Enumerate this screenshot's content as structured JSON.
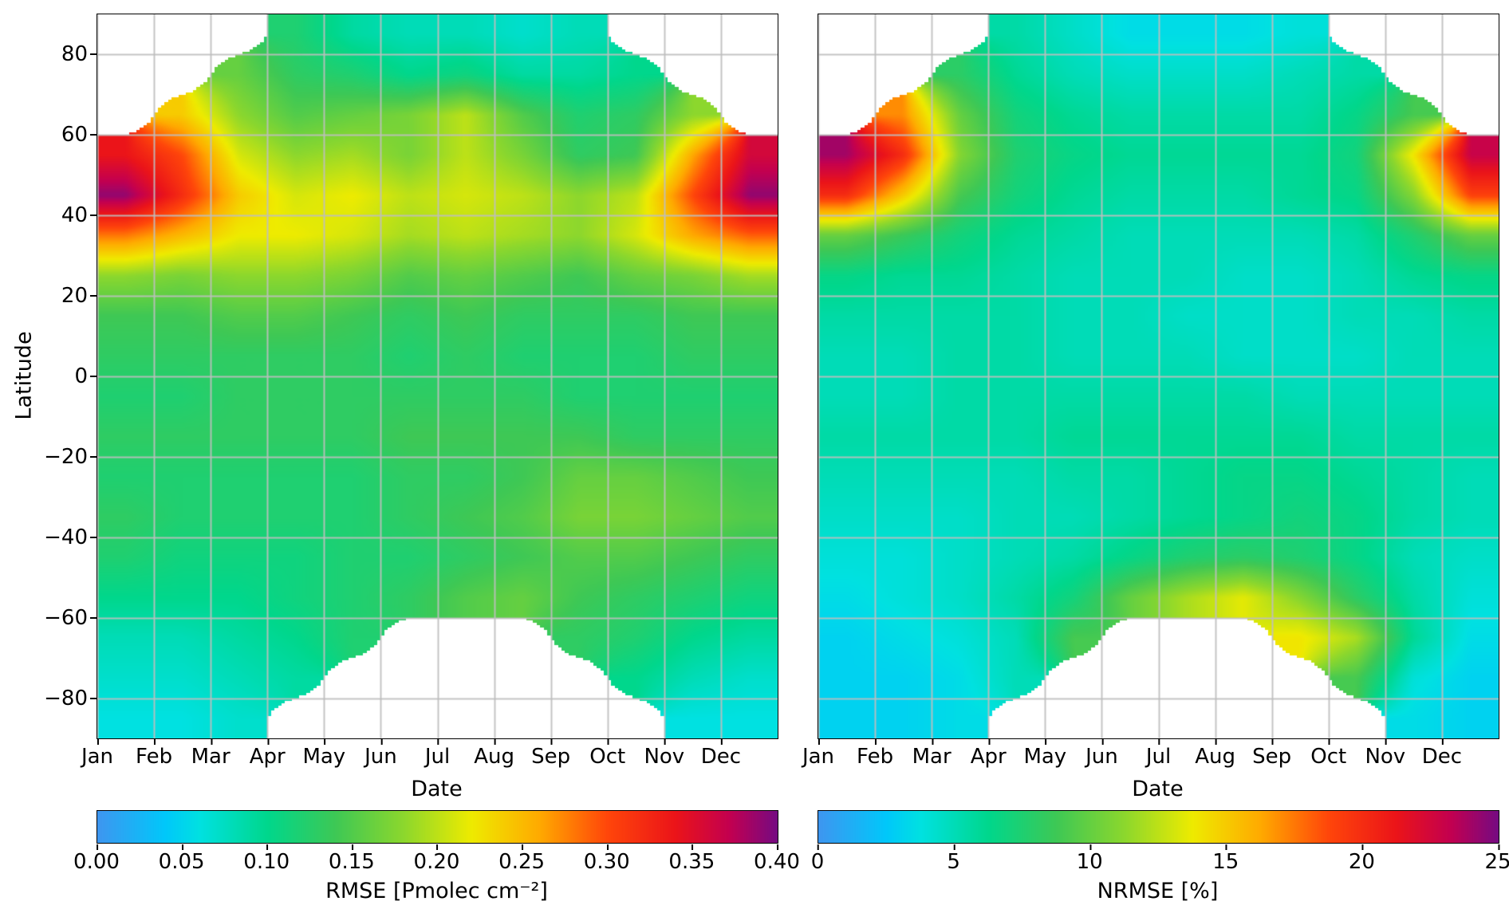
{
  "figure": {
    "ylabel": "Latitude",
    "xlabel": "Date",
    "months": [
      "Jan",
      "Feb",
      "Mar",
      "Apr",
      "May",
      "Jun",
      "Jul",
      "Aug",
      "Sep",
      "Oct",
      "Nov",
      "Dec"
    ],
    "lat_ticks": {
      "values": [
        80,
        60,
        40,
        20,
        0,
        -20,
        -40,
        -60,
        -80
      ],
      "labels": [
        "80",
        "60",
        "40",
        "20",
        "0",
        "−20",
        "−40",
        "−60",
        "−80"
      ]
    },
    "grid_color": "#bebebe",
    "background_color": "#ffffff"
  },
  "colormap": [
    [
      0.0,
      [
        62,
        150,
        240
      ]
    ],
    [
      0.1,
      [
        0,
        200,
        250
      ]
    ],
    [
      0.15,
      [
        0,
        225,
        225
      ]
    ],
    [
      0.25,
      [
        0,
        215,
        140
      ]
    ],
    [
      0.35,
      [
        62,
        200,
        85
      ]
    ],
    [
      0.45,
      [
        140,
        215,
        45
      ]
    ],
    [
      0.55,
      [
        238,
        235,
        0
      ]
    ],
    [
      0.65,
      [
        255,
        170,
        0
      ]
    ],
    [
      0.75,
      [
        255,
        70,
        10
      ]
    ],
    [
      0.85,
      [
        235,
        20,
        25
      ]
    ],
    [
      0.93,
      [
        195,
        0,
        80
      ]
    ],
    [
      1.0,
      [
        118,
        10,
        130
      ]
    ]
  ],
  "chart_data": [
    {
      "type": "heatmap",
      "panel": "left",
      "xlabel": "Date",
      "ylabel": "Latitude",
      "colorbar_label": "RMSE [Pmolec cm⁻²]",
      "x_categories": [
        "Jan",
        "Feb",
        "Mar",
        "Apr",
        "May",
        "Jun",
        "Jul",
        "Aug",
        "Sep",
        "Oct",
        "Nov",
        "Dec"
      ],
      "lat_centers": [
        85,
        75,
        65,
        55,
        45,
        35,
        25,
        15,
        5,
        -5,
        -15,
        -25,
        -35,
        -45,
        -55,
        -65,
        -75,
        -85
      ],
      "ylim": [
        -90,
        90
      ],
      "vmin": 0,
      "vmax": 0.4,
      "grid": true,
      "colorbar_ticks": {
        "values": [
          0,
          0.05,
          0.1,
          0.15,
          0.2,
          0.25,
          0.3,
          0.35,
          0.4
        ],
        "labels": [
          "0.00",
          "0.05",
          "0.10",
          "0.15",
          "0.20",
          "0.25",
          "0.30",
          "0.35",
          "0.40"
        ]
      },
      "values": [
        [
          null,
          null,
          null,
          0.12,
          0.09,
          0.08,
          0.08,
          0.07,
          0.08,
          null,
          null,
          null
        ],
        [
          null,
          null,
          0.16,
          0.13,
          0.12,
          0.1,
          0.11,
          0.09,
          0.09,
          0.1,
          null,
          null
        ],
        [
          null,
          0.24,
          0.18,
          0.15,
          0.16,
          0.17,
          0.2,
          0.15,
          0.12,
          0.13,
          0.18,
          null
        ],
        [
          0.34,
          0.3,
          0.21,
          0.18,
          0.19,
          0.17,
          0.2,
          0.17,
          0.13,
          0.14,
          0.26,
          0.36
        ],
        [
          0.39,
          0.32,
          0.24,
          0.21,
          0.22,
          0.2,
          0.21,
          0.2,
          0.18,
          0.2,
          0.3,
          0.39
        ],
        [
          0.28,
          0.25,
          0.22,
          0.22,
          0.21,
          0.19,
          0.2,
          0.19,
          0.18,
          0.21,
          0.26,
          0.29
        ],
        [
          0.18,
          0.17,
          0.18,
          0.18,
          0.17,
          0.15,
          0.16,
          0.15,
          0.14,
          0.16,
          0.17,
          0.19
        ],
        [
          0.14,
          0.14,
          0.15,
          0.15,
          0.14,
          0.13,
          0.14,
          0.13,
          0.13,
          0.13,
          0.14,
          0.14
        ],
        [
          0.13,
          0.13,
          0.13,
          0.13,
          0.13,
          0.12,
          0.13,
          0.12,
          0.12,
          0.12,
          0.13,
          0.13
        ],
        [
          0.12,
          0.12,
          0.13,
          0.13,
          0.13,
          0.13,
          0.13,
          0.13,
          0.12,
          0.12,
          0.12,
          0.12
        ],
        [
          0.13,
          0.13,
          0.13,
          0.13,
          0.13,
          0.14,
          0.14,
          0.14,
          0.14,
          0.13,
          0.13,
          0.13
        ],
        [
          0.12,
          0.12,
          0.12,
          0.12,
          0.12,
          0.13,
          0.13,
          0.14,
          0.16,
          0.16,
          0.15,
          0.14
        ],
        [
          0.13,
          0.12,
          0.12,
          0.12,
          0.12,
          0.13,
          0.14,
          0.15,
          0.17,
          0.17,
          0.16,
          0.15
        ],
        [
          0.12,
          0.11,
          0.11,
          0.11,
          0.12,
          0.12,
          0.13,
          0.14,
          0.15,
          0.15,
          0.14,
          0.13
        ],
        [
          0.1,
          0.1,
          0.1,
          0.11,
          0.12,
          0.13,
          0.15,
          0.16,
          0.14,
          0.13,
          0.12,
          0.11
        ],
        [
          0.08,
          0.08,
          0.09,
          0.1,
          0.12,
          null,
          null,
          null,
          0.13,
          0.12,
          0.1,
          0.09
        ],
        [
          0.07,
          0.07,
          0.08,
          0.09,
          null,
          null,
          null,
          null,
          null,
          0.1,
          0.08,
          0.07
        ],
        [
          0.06,
          0.06,
          0.07,
          null,
          null,
          null,
          null,
          null,
          null,
          null,
          0.06,
          0.06
        ]
      ]
    },
    {
      "type": "heatmap",
      "panel": "right",
      "xlabel": "Date",
      "ylabel": "Latitude",
      "colorbar_label": "NRMSE [%]",
      "x_categories": [
        "Jan",
        "Feb",
        "Mar",
        "Apr",
        "May",
        "Jun",
        "Jul",
        "Aug",
        "Sep",
        "Oct",
        "Nov",
        "Dec"
      ],
      "lat_centers": [
        85,
        75,
        65,
        55,
        45,
        35,
        25,
        15,
        5,
        -5,
        -15,
        -25,
        -35,
        -45,
        -55,
        -65,
        -75,
        -85
      ],
      "ylim": [
        -90,
        90
      ],
      "vmin": 0,
      "vmax": 25,
      "grid": true,
      "colorbar_ticks": {
        "values": [
          0,
          5,
          10,
          15,
          20,
          25
        ],
        "labels": [
          "0",
          "5",
          "10",
          "15",
          "20",
          "25"
        ]
      },
      "values": [
        [
          null,
          null,
          null,
          5.5,
          4.5,
          3.5,
          3.5,
          3.5,
          4,
          null,
          null,
          null
        ],
        [
          null,
          null,
          8,
          6,
          5,
          4.5,
          4.5,
          4.5,
          5,
          5.5,
          null,
          null
        ],
        [
          null,
          17,
          10,
          7,
          6,
          5.5,
          5.5,
          5.5,
          5.5,
          6.5,
          9,
          null
        ],
        [
          24,
          20,
          11,
          7.5,
          6.5,
          6,
          6,
          6,
          6,
          7,
          14,
          23
        ],
        [
          20,
          15,
          9,
          7,
          6,
          5.5,
          5.5,
          5.5,
          6,
          6.5,
          11,
          19
        ],
        [
          10,
          8.5,
          7,
          6,
          5.5,
          5,
          5,
          5,
          5,
          5.5,
          7.5,
          10
        ],
        [
          6.5,
          6,
          6,
          5.5,
          5,
          5,
          5,
          4.5,
          4.5,
          5,
          6,
          6.5
        ],
        [
          5.5,
          5.5,
          5.5,
          5.5,
          5,
          5,
          4.5,
          4.5,
          4.5,
          5,
          5,
          5.5
        ],
        [
          5,
          5,
          5.5,
          5.5,
          5,
          5,
          5,
          4.5,
          4.5,
          4.5,
          5,
          5
        ],
        [
          5,
          5,
          5.5,
          5.5,
          5.5,
          5.5,
          5.5,
          5.5,
          5,
          5,
          5,
          5
        ],
        [
          5.5,
          5.5,
          5.5,
          5.5,
          6,
          6,
          6,
          6,
          6,
          5.5,
          5.5,
          5.5
        ],
        [
          5,
          5,
          5,
          5,
          5.5,
          5.5,
          6,
          6.5,
          6.5,
          6,
          5.5,
          5
        ],
        [
          4.5,
          4.5,
          4.5,
          5,
          5,
          5.5,
          6,
          6.5,
          7,
          6.5,
          5.5,
          5
        ],
        [
          4,
          4,
          4.5,
          5,
          5.5,
          6.5,
          7.5,
          8,
          7.5,
          6.5,
          5,
          4.5
        ],
        [
          3.5,
          4,
          4.5,
          5.5,
          7,
          10,
          12,
          13.5,
          11,
          8,
          5.5,
          4
        ],
        [
          3,
          3.5,
          4,
          5,
          9,
          null,
          null,
          null,
          14,
          12,
          6,
          3.5
        ],
        [
          3,
          3,
          3.5,
          5,
          null,
          null,
          null,
          null,
          null,
          9,
          4,
          3
        ],
        [
          3,
          3,
          3.5,
          null,
          null,
          null,
          null,
          null,
          null,
          null,
          3.5,
          3
        ]
      ]
    }
  ]
}
